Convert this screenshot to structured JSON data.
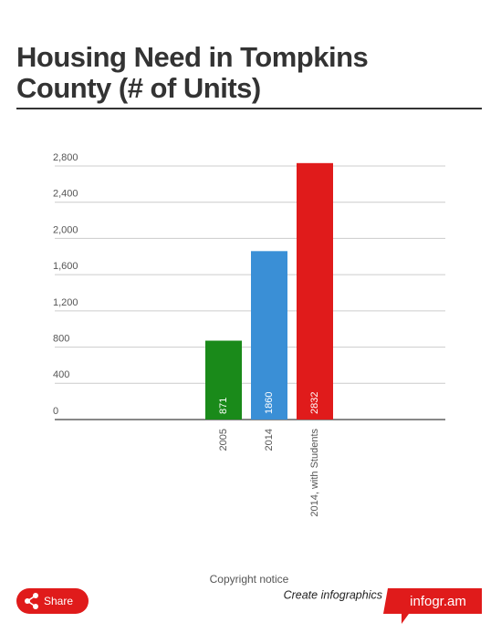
{
  "chart_data": {
    "type": "bar",
    "title": "Housing Need in Tompkins County (# of Units)",
    "categories": [
      "2005",
      "2014",
      "2014, with Students"
    ],
    "values": [
      871,
      1860,
      2832
    ],
    "colors": [
      "#1a8a1a",
      "#3a8fd6",
      "#e01b1b"
    ],
    "ylim": [
      0,
      2800
    ],
    "yticks": [
      0,
      400,
      800,
      {
        "value": 1200,
        "label": "1,200"
      },
      {
        "value": 1600,
        "label": "1,600"
      },
      {
        "value": 2000,
        "label": "2,000"
      },
      {
        "value": 2400,
        "label": "2,400"
      },
      {
        "value": 2800,
        "label": "2,800"
      }
    ],
    "grid": true
  },
  "footer": {
    "copyright": "Copyright notice",
    "share": "Share",
    "create": "Create infographics",
    "brand": "infogr.am"
  }
}
